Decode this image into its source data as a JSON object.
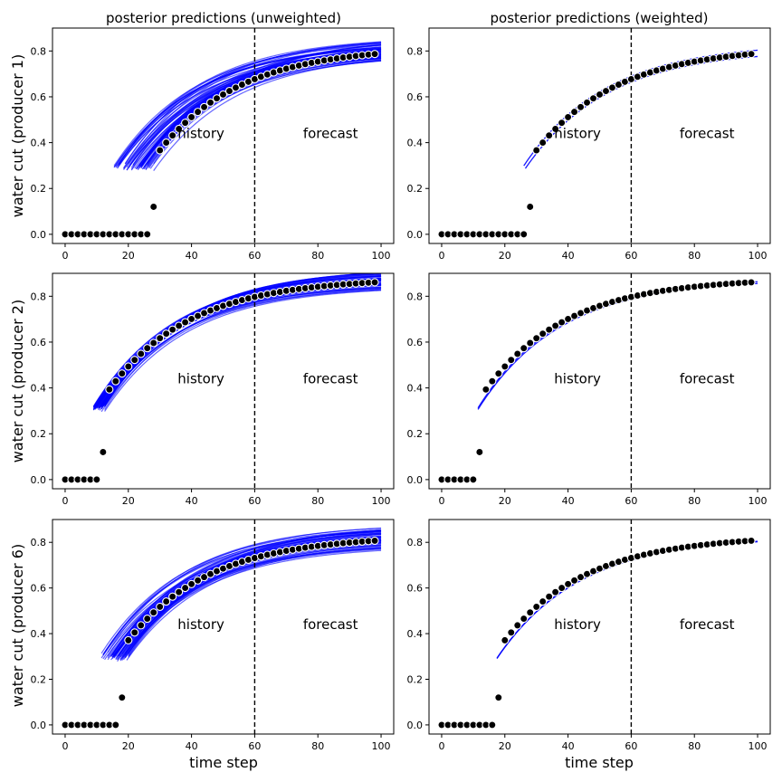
{
  "chart_data": {
    "type": "line",
    "shared": {
      "xlabel": "time step",
      "xlim": [
        -4,
        104
      ],
      "ylim": [
        -0.04,
        0.9
      ],
      "x_ticks": [
        0,
        20,
        40,
        60,
        80,
        100
      ],
      "y_ticks": [
        0.0,
        0.2,
        0.4,
        0.6,
        0.8
      ],
      "history_forecast_split": 60,
      "annotations": [
        "history",
        "forecast"
      ],
      "annotation_y": 0.42,
      "history_x": 43,
      "forecast_x": 84,
      "ensemble_color": "#0000ff",
      "observed_color": "#000000"
    },
    "column_titles": [
      "posterior predictions (unweighted)",
      "posterior predictions (weighted)"
    ],
    "panels": [
      {
        "row": 0,
        "col": 0,
        "ylabel": "water cut (producer 1)",
        "weighted": false,
        "breakthrough": 27,
        "final": 0.82,
        "onset_min": 15,
        "onset_max": 28,
        "spread": 0.04,
        "n_members": 60
      },
      {
        "row": 0,
        "col": 1,
        "ylabel": "",
        "weighted": true,
        "breakthrough": 27,
        "final": 0.82,
        "onset_min": 25.5,
        "onset_max": 26.5,
        "spread": 0.015,
        "n_members": 2
      },
      {
        "row": 1,
        "col": 0,
        "ylabel": "water cut (producer 2)",
        "weighted": false,
        "breakthrough": 11,
        "final": 0.88,
        "onset_min": 8.5,
        "onset_max": 12.5,
        "spread": 0.04,
        "n_members": 60
      },
      {
        "row": 1,
        "col": 1,
        "ylabel": "",
        "weighted": true,
        "breakthrough": 11,
        "final": 0.88,
        "onset_min": 10.5,
        "onset_max": 11.5,
        "spread": 0.008,
        "n_members": 2
      },
      {
        "row": 2,
        "col": 0,
        "ylabel": "water cut (producer 6)",
        "weighted": false,
        "breakthrough": 17,
        "final": 0.83,
        "onset_min": 11,
        "onset_max": 20,
        "spread": 0.05,
        "n_members": 60
      },
      {
        "row": 2,
        "col": 1,
        "ylabel": "",
        "weighted": true,
        "breakthrough": 17,
        "final": 0.83,
        "onset_min": 16.5,
        "onset_max": 17.5,
        "spread": 0.01,
        "n_members": 2
      }
    ]
  }
}
